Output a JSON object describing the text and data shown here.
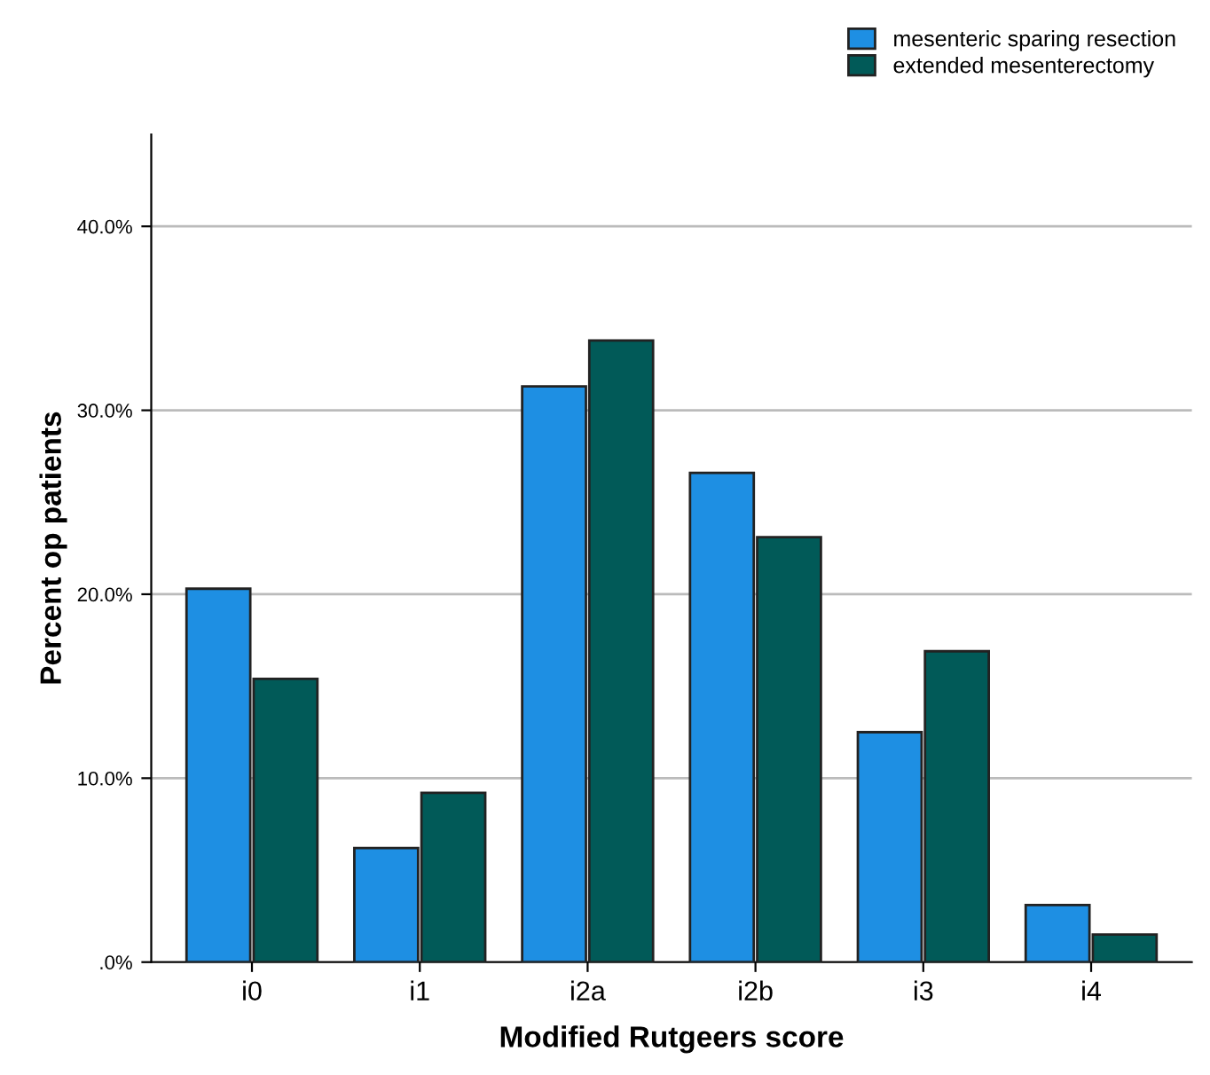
{
  "chart_data": {
    "type": "bar",
    "xlabel": "Modified Rutgeers score",
    "ylabel": "Percent op patients",
    "categories": [
      "i0",
      "i1",
      "i2a",
      "i2b",
      "i3",
      "i4"
    ],
    "series": [
      {
        "name": "mesenteric sparing resection",
        "color": "#1e8fe3",
        "values": [
          20.3,
          6.2,
          31.3,
          26.6,
          12.5,
          3.1
        ]
      },
      {
        "name": "extended mesenterectomy",
        "color": "#015a58",
        "values": [
          15.4,
          9.2,
          33.8,
          23.1,
          16.9,
          1.5
        ]
      }
    ],
    "ylim": [
      0,
      45
    ],
    "yticks": [
      {
        "value": 0,
        "label": ".0%"
      },
      {
        "value": 10,
        "label": "10.0%"
      },
      {
        "value": 20,
        "label": "20.0%"
      },
      {
        "value": 30,
        "label": "30.0%"
      },
      {
        "value": 40,
        "label": "40.0%"
      }
    ],
    "grid": "y",
    "legend": "top right"
  }
}
